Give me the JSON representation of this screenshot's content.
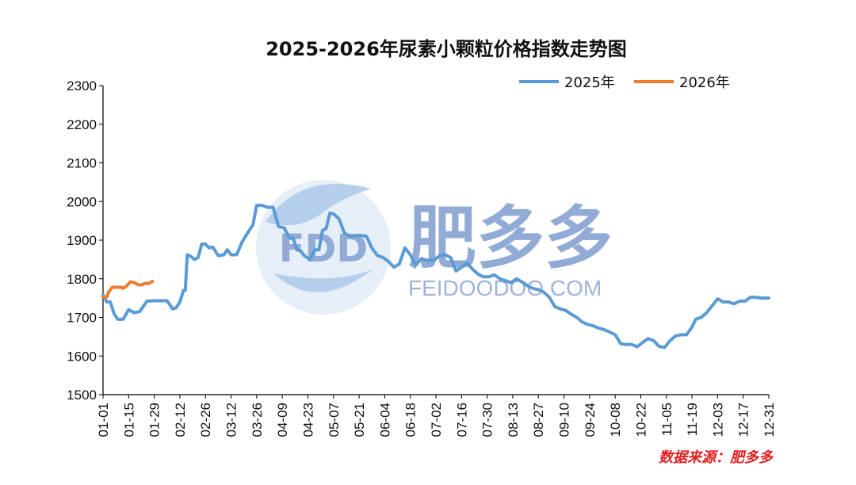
{
  "chart_data": {
    "type": "line",
    "title": "2025-2026年尿素小颗粒价格指数走势图",
    "ylim": [
      1500,
      2300
    ],
    "yticks": [
      1500,
      1600,
      1700,
      1800,
      1900,
      2000,
      2100,
      2200,
      2300
    ],
    "x_domain": [
      "01-01",
      "12-31"
    ],
    "xticks": [
      "01-01",
      "01-15",
      "01-29",
      "02-12",
      "02-26",
      "03-12",
      "03-26",
      "04-09",
      "04-23",
      "05-07",
      "05-21",
      "06-04",
      "06-18",
      "07-02",
      "07-16",
      "07-30",
      "08-13",
      "08-27",
      "09-10",
      "09-24",
      "10-08",
      "10-22",
      "11-05",
      "11-19",
      "12-03",
      "12-17",
      "12-31"
    ],
    "legend_position": "top-right",
    "grid": false,
    "series": [
      {
        "name": "2025年",
        "color": "#5b9bd5",
        "points": [
          [
            "01-01",
            1758
          ],
          [
            "01-03",
            1740
          ],
          [
            "01-05",
            1740
          ],
          [
            "01-07",
            1710
          ],
          [
            "01-09",
            1695
          ],
          [
            "01-12",
            1695
          ],
          [
            "01-15",
            1720
          ],
          [
            "01-18",
            1712
          ],
          [
            "01-21",
            1715
          ],
          [
            "01-25",
            1742
          ],
          [
            "01-29",
            1743
          ],
          [
            "02-05",
            1743
          ],
          [
            "02-08",
            1722
          ],
          [
            "02-10",
            1725
          ],
          [
            "02-12",
            1740
          ],
          [
            "02-14",
            1770
          ],
          [
            "02-15",
            1770
          ],
          [
            "02-16",
            1862
          ],
          [
            "02-18",
            1858
          ],
          [
            "02-20",
            1850
          ],
          [
            "02-22",
            1855
          ],
          [
            "02-24",
            1890
          ],
          [
            "02-26",
            1890
          ],
          [
            "02-28",
            1880
          ],
          [
            "03-02",
            1882
          ],
          [
            "03-05",
            1860
          ],
          [
            "03-08",
            1862
          ],
          [
            "03-10",
            1875
          ],
          [
            "03-12",
            1862
          ],
          [
            "03-15",
            1862
          ],
          [
            "03-18",
            1895
          ],
          [
            "03-21",
            1918
          ],
          [
            "03-24",
            1940
          ],
          [
            "03-26",
            1990
          ],
          [
            "03-29",
            1990
          ],
          [
            "04-01",
            1985
          ],
          [
            "04-04",
            1985
          ],
          [
            "04-07",
            1935
          ],
          [
            "04-10",
            1932
          ],
          [
            "04-13",
            1905
          ],
          [
            "04-15",
            1905
          ],
          [
            "04-17",
            1875
          ],
          [
            "04-19",
            1872
          ],
          [
            "04-21",
            1860
          ],
          [
            "04-24",
            1850
          ],
          [
            "04-27",
            1875
          ],
          [
            "04-29",
            1875
          ],
          [
            "05-01",
            1925
          ],
          [
            "05-03",
            1930
          ],
          [
            "05-05",
            1970
          ],
          [
            "05-07",
            1968
          ],
          [
            "05-10",
            1955
          ],
          [
            "05-13",
            1918
          ],
          [
            "05-16",
            1910
          ],
          [
            "05-19",
            1912
          ],
          [
            "05-22",
            1912
          ],
          [
            "05-25",
            1910
          ],
          [
            "05-28",
            1880
          ],
          [
            "05-31",
            1860
          ],
          [
            "06-03",
            1855
          ],
          [
            "06-06",
            1845
          ],
          [
            "06-09",
            1830
          ],
          [
            "06-12",
            1838
          ],
          [
            "06-15",
            1880
          ],
          [
            "06-18",
            1862
          ],
          [
            "06-21",
            1835
          ],
          [
            "06-24",
            1852
          ],
          [
            "06-27",
            1848
          ],
          [
            "07-01",
            1848
          ],
          [
            "07-04",
            1860
          ],
          [
            "07-07",
            1862
          ],
          [
            "07-10",
            1855
          ],
          [
            "07-13",
            1820
          ],
          [
            "07-16",
            1830
          ],
          [
            "07-19",
            1840
          ],
          [
            "07-22",
            1825
          ],
          [
            "07-25",
            1812
          ],
          [
            "07-28",
            1805
          ],
          [
            "07-31",
            1805
          ],
          [
            "08-03",
            1810
          ],
          [
            "08-06",
            1800
          ],
          [
            "08-09",
            1795
          ],
          [
            "08-12",
            1790
          ],
          [
            "08-15",
            1800
          ],
          [
            "08-18",
            1792
          ],
          [
            "08-21",
            1782
          ],
          [
            "08-24",
            1775
          ],
          [
            "08-27",
            1772
          ],
          [
            "08-30",
            1765
          ],
          [
            "09-02",
            1752
          ],
          [
            "09-05",
            1728
          ],
          [
            "09-08",
            1722
          ],
          [
            "09-11",
            1718
          ],
          [
            "09-14",
            1708
          ],
          [
            "09-17",
            1700
          ],
          [
            "09-20",
            1688
          ],
          [
            "09-23",
            1682
          ],
          [
            "09-26",
            1678
          ],
          [
            "09-29",
            1672
          ],
          [
            "10-02",
            1668
          ],
          [
            "10-05",
            1662
          ],
          [
            "10-08",
            1655
          ],
          [
            "10-11",
            1632
          ],
          [
            "10-14",
            1630
          ],
          [
            "10-17",
            1630
          ],
          [
            "10-20",
            1624
          ],
          [
            "10-23",
            1635
          ],
          [
            "10-26",
            1645
          ],
          [
            "10-29",
            1640
          ],
          [
            "11-01",
            1625
          ],
          [
            "11-04",
            1622
          ],
          [
            "11-07",
            1640
          ],
          [
            "11-10",
            1652
          ],
          [
            "11-13",
            1655
          ],
          [
            "11-16",
            1655
          ],
          [
            "11-19",
            1675
          ],
          [
            "11-21",
            1695
          ],
          [
            "11-24",
            1700
          ],
          [
            "11-27",
            1712
          ],
          [
            "11-30",
            1730
          ],
          [
            "12-03",
            1748
          ],
          [
            "12-06",
            1740
          ],
          [
            "12-09",
            1740
          ],
          [
            "12-12",
            1735
          ],
          [
            "12-15",
            1742
          ],
          [
            "12-18",
            1742
          ],
          [
            "12-21",
            1752
          ],
          [
            "12-24",
            1752
          ],
          [
            "12-27",
            1750
          ],
          [
            "12-31",
            1750
          ]
        ]
      },
      {
        "name": "2026年",
        "color": "#ed7d31",
        "points": [
          [
            "01-01",
            1752
          ],
          [
            "01-03",
            1752
          ],
          [
            "01-04",
            1765
          ],
          [
            "01-06",
            1778
          ],
          [
            "01-09",
            1778
          ],
          [
            "01-11",
            1778
          ],
          [
            "01-12",
            1775
          ],
          [
            "01-14",
            1782
          ],
          [
            "01-16",
            1792
          ],
          [
            "01-18",
            1790
          ],
          [
            "01-20",
            1785
          ],
          [
            "01-22",
            1784
          ],
          [
            "01-24",
            1788
          ],
          [
            "01-26",
            1788
          ],
          [
            "01-28",
            1793
          ]
        ]
      }
    ]
  },
  "source": "数据来源：肥多多",
  "watermark": {
    "logo_text": "FDD",
    "brand": "肥多多",
    "url": "FEIDOODOO.COM"
  }
}
